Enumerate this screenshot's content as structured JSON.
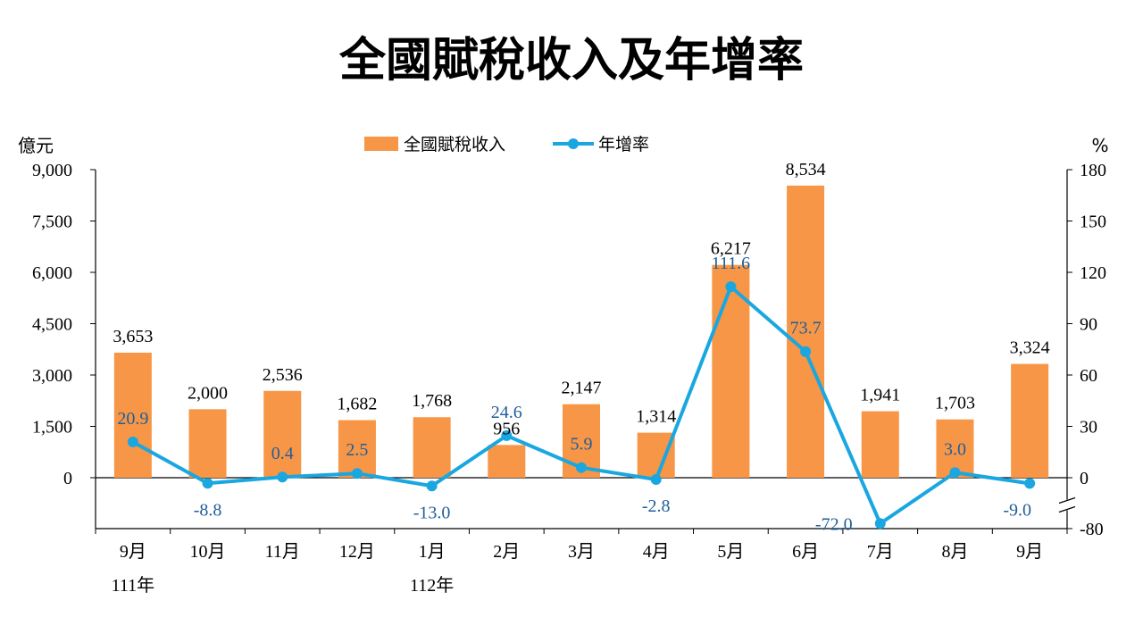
{
  "chart_data": {
    "type": "bar",
    "title": "全國賦稅收入及年增率",
    "categories": [
      "9月",
      "10月",
      "11月",
      "12月",
      "1月",
      "2月",
      "3月",
      "4月",
      "5月",
      "6月",
      "7月",
      "8月",
      "9月"
    ],
    "year_labels": [
      "111年",
      "",
      "",
      "",
      "112年",
      "",
      "",
      "",
      "",
      "",
      "",
      "",
      ""
    ],
    "series": [
      {
        "name": "全國賦稅收入",
        "type": "bar",
        "axis": "left",
        "color": "#F79646",
        "values": [
          3653,
          2000,
          2536,
          1682,
          1768,
          956,
          2147,
          1314,
          6217,
          8534,
          1941,
          1703,
          3324
        ],
        "labels": [
          "3,653",
          "2,000",
          "2,536",
          "1,682",
          "1,768",
          "956",
          "2,147",
          "1,314",
          "6,217",
          "8,534",
          "1,941",
          "1,703",
          "3,324"
        ]
      },
      {
        "name": "年增率",
        "type": "line",
        "axis": "right",
        "color": "#1AA7E0",
        "values": [
          20.9,
          -8.8,
          0.4,
          2.5,
          -13.0,
          24.6,
          5.9,
          -2.8,
          111.6,
          73.7,
          -72.0,
          3.0,
          -9.0
        ],
        "labels": [
          "20.9",
          "-8.8",
          "0.4",
          "2.5",
          "-13.0",
          "24.6",
          "5.9",
          "-2.8",
          "111.6",
          "73.7",
          "-72.0",
          "3.0",
          "-9.0"
        ]
      }
    ],
    "left_axis": {
      "unit": "億元",
      "ticks": [
        "9,000",
        "7,500",
        "6,000",
        "4,500",
        "3,000",
        "1,500",
        "0"
      ],
      "ylim": [
        0,
        9000
      ]
    },
    "right_axis": {
      "unit": "%",
      "ticks": [
        "180",
        "150",
        "120",
        "90",
        "60",
        "30",
        "0",
        "-80"
      ],
      "ylim": [
        -80,
        180
      ],
      "axis_break": true
    },
    "legend_position": "top-center",
    "label_color": "#1F5F99"
  }
}
